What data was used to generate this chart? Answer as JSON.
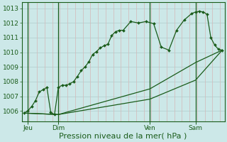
{
  "title": "Pression niveau de la mer( hPa )",
  "bg_color": "#cce8e8",
  "plot_bg_color": "#cce8e8",
  "grid_color_h": "#b8d4d4",
  "grid_color_v": "#d4b8b8",
  "line_color": "#1a5c1a",
  "ylim": [
    1005.3,
    1013.4
  ],
  "yticks": [
    1006,
    1007,
    1008,
    1009,
    1010,
    1011,
    1012,
    1013
  ],
  "xlim": [
    -0.3,
    26.3
  ],
  "day_positions": [
    0.5,
    4.5,
    16.5,
    22.5
  ],
  "day_labels": [
    "Jeu",
    "Dim",
    "Ven",
    "Sam"
  ],
  "vline_positions": [
    0.5,
    4.5,
    16.5,
    22.5
  ],
  "series1_x": [
    0,
    0.5,
    1,
    1.5,
    2,
    2.5,
    3,
    3.5,
    4,
    4.5,
    5,
    5.5,
    6,
    6.5,
    7,
    7.5,
    8,
    8.5,
    9,
    9.5,
    10,
    10.5,
    11,
    11.5,
    12,
    12.5,
    13,
    14,
    15,
    16,
    17,
    18,
    19,
    20,
    21,
    22,
    22.5,
    23,
    23.5,
    24,
    24.5,
    25,
    25.5,
    26
  ],
  "series1_y": [
    1005.85,
    1006.0,
    1006.3,
    1006.7,
    1007.3,
    1007.45,
    1007.6,
    1005.9,
    1005.75,
    1007.6,
    1007.75,
    1007.75,
    1007.85,
    1008.0,
    1008.35,
    1008.75,
    1009.0,
    1009.35,
    1009.85,
    1010.05,
    1010.3,
    1010.45,
    1010.55,
    1011.15,
    1011.4,
    1011.5,
    1011.5,
    1012.1,
    1012.0,
    1012.1,
    1011.95,
    1010.35,
    1010.15,
    1011.5,
    1012.2,
    1012.65,
    1012.75,
    1012.8,
    1012.75,
    1012.6,
    1011.0,
    1010.5,
    1010.2,
    1010.15
  ],
  "series2_x": [
    0,
    4.5,
    16.5,
    22.5,
    26
  ],
  "series2_y": [
    1005.85,
    1005.75,
    1006.8,
    1008.1,
    1010.15
  ],
  "series3_x": [
    0,
    4.5,
    16.5,
    22.5,
    26
  ],
  "series3_y": [
    1005.85,
    1005.75,
    1007.5,
    1009.3,
    1010.15
  ],
  "xlabel_fontsize": 8.0,
  "tick_fontsize": 6.5,
  "figsize": [
    3.2,
    2.0
  ],
  "dpi": 100
}
